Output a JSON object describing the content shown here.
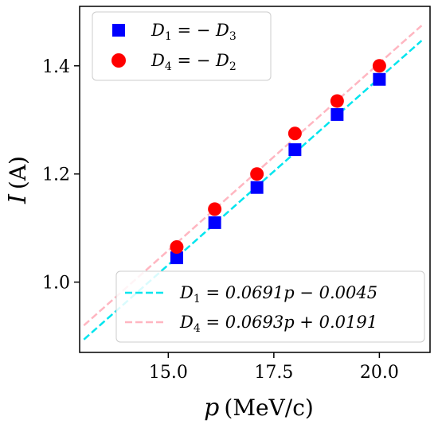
{
  "chart_data": {
    "type": "scatter",
    "xlabel_symbol": "p",
    "xlabel_unit": "(MeV/c)",
    "ylabel_symbol": "I",
    "ylabel_unit": "(A)",
    "xlim": [
      12.9,
      21.2
    ],
    "ylim": [
      0.87,
      1.51
    ],
    "x_ticks": [
      15.0,
      17.5,
      20.0
    ],
    "x_tick_labels": [
      "15.0",
      "17.5",
      "20.0"
    ],
    "y_ticks": [
      1.0,
      1.2,
      1.4
    ],
    "y_tick_labels": [
      "1.0",
      "1.2",
      "1.4"
    ],
    "grid": false,
    "series": [
      {
        "name": "D1 = −D3",
        "marker": "square",
        "color": "#0000ff",
        "x": [
          15.2,
          16.1,
          17.1,
          18.0,
          19.0,
          20.0
        ],
        "y": [
          1.045,
          1.11,
          1.175,
          1.245,
          1.31,
          1.375
        ]
      },
      {
        "name": "D4 = −D2",
        "marker": "circle",
        "color": "#ff0000",
        "x": [
          15.2,
          16.1,
          17.1,
          18.0,
          19.0,
          20.0
        ],
        "y": [
          1.065,
          1.135,
          1.2,
          1.275,
          1.335,
          1.4
        ]
      }
    ],
    "fits": [
      {
        "name": "D1 = 0.0691p − 0.0045",
        "slope": 0.0691,
        "intercept": -0.0045,
        "color": "#00e5ee",
        "x_range": [
          13.0,
          21.0
        ]
      },
      {
        "name": "D4 = 0.0693p + 0.0191",
        "slope": 0.0693,
        "intercept": 0.0191,
        "color": "#ffb6c1",
        "x_range": [
          13.0,
          21.0
        ]
      }
    ],
    "legend_top": {
      "placement": "top-left",
      "entries": [
        {
          "lhs": "D",
          "lhs_sub": "1",
          "rhs": " = − D",
          "rhs_sub": "3"
        },
        {
          "lhs": "D",
          "lhs_sub": "4",
          "rhs": " = − D",
          "rhs_sub": "2"
        }
      ]
    },
    "legend_bottom": {
      "placement": "bottom-right",
      "entries": [
        {
          "lhs": "D",
          "lhs_sub": "1",
          "rhs": " = 0.0691p − 0.0045"
        },
        {
          "lhs": "D",
          "lhs_sub": "4",
          "rhs": " = 0.0693p + 0.0191"
        }
      ]
    }
  }
}
